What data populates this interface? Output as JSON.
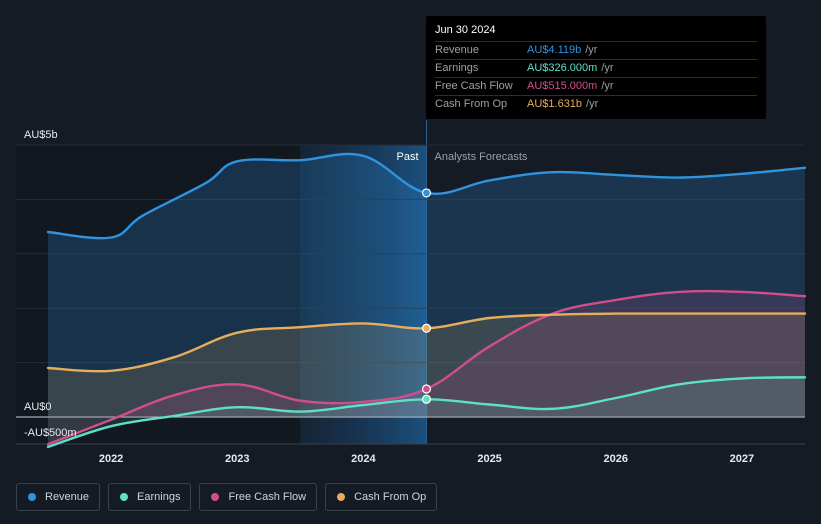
{
  "colors": {
    "revenue": "#2f93e0",
    "earnings": "#5ee0c6",
    "fcf": "#d04e8c",
    "cfo": "#e8ad5c"
  },
  "tooltip": {
    "date": "Jun 30 2024",
    "rows": [
      {
        "label": "Revenue",
        "value": "AU$4.119b",
        "unit": "/yr",
        "color": "#2f93e0"
      },
      {
        "label": "Earnings",
        "value": "AU$326.000m",
        "unit": "/yr",
        "color": "#5ee0c6"
      },
      {
        "label": "Free Cash Flow",
        "value": "AU$515.000m",
        "unit": "/yr",
        "color": "#d04e8c"
      },
      {
        "label": "Cash From Op",
        "value": "AU$1.631b",
        "unit": "/yr",
        "color": "#e8ad5c"
      }
    ]
  },
  "legend": [
    {
      "label": "Revenue",
      "color": "#2f93e0"
    },
    {
      "label": "Earnings",
      "color": "#5ee0c6"
    },
    {
      "label": "Free Cash Flow",
      "color": "#d04e8c"
    },
    {
      "label": "Cash From Op",
      "color": "#e8ad5c"
    }
  ],
  "chart_data": {
    "type": "line",
    "y_unit": "AU$ billions",
    "ylim": [
      -0.5,
      5
    ],
    "xlim": [
      2021.5,
      2027.5
    ],
    "y_labels": [
      {
        "value": 5,
        "label": "AU$5b"
      },
      {
        "value": 0,
        "label": "AU$0"
      },
      {
        "value": -0.5,
        "label": "-AU$500m"
      }
    ],
    "x_ticks": [
      {
        "value": 2022,
        "label": "2022"
      },
      {
        "value": 2023,
        "label": "2023"
      },
      {
        "value": 2024,
        "label": "2024"
      },
      {
        "value": 2025,
        "label": "2025"
      },
      {
        "value": 2026,
        "label": "2026"
      },
      {
        "value": 2027,
        "label": "2027"
      }
    ],
    "divider_x": 2024.5,
    "past_label": "Past",
    "forecast_label": "Analysts Forecasts",
    "highlight_start": 2023.5,
    "series": [
      {
        "name": "Revenue",
        "key": "revenue",
        "points": [
          [
            2021.5,
            3.4
          ],
          [
            2022,
            3.3
          ],
          [
            2022.25,
            3.7
          ],
          [
            2022.75,
            4.3
          ],
          [
            2023,
            4.7
          ],
          [
            2023.5,
            4.72
          ],
          [
            2024,
            4.8
          ],
          [
            2024.5,
            4.119
          ],
          [
            2025,
            4.35
          ],
          [
            2025.5,
            4.5
          ],
          [
            2026,
            4.45
          ],
          [
            2026.5,
            4.4
          ],
          [
            2027,
            4.47
          ],
          [
            2027.5,
            4.58
          ]
        ]
      },
      {
        "name": "Earnings",
        "key": "earnings",
        "points": [
          [
            2021.5,
            -0.55
          ],
          [
            2022,
            -0.17
          ],
          [
            2022.5,
            0.02
          ],
          [
            2023,
            0.18
          ],
          [
            2023.5,
            0.1
          ],
          [
            2024,
            0.22
          ],
          [
            2024.5,
            0.326
          ],
          [
            2025,
            0.23
          ],
          [
            2025.5,
            0.15
          ],
          [
            2026,
            0.35
          ],
          [
            2026.5,
            0.6
          ],
          [
            2027,
            0.71
          ],
          [
            2027.5,
            0.73
          ]
        ]
      },
      {
        "name": "Free Cash Flow",
        "key": "fcf",
        "points": [
          [
            2021.5,
            -0.5
          ],
          [
            2022,
            -0.05
          ],
          [
            2022.5,
            0.4
          ],
          [
            2023,
            0.6
          ],
          [
            2023.5,
            0.3
          ],
          [
            2024,
            0.28
          ],
          [
            2024.5,
            0.515
          ],
          [
            2025,
            1.3
          ],
          [
            2025.5,
            1.9
          ],
          [
            2026,
            2.15
          ],
          [
            2026.5,
            2.3
          ],
          [
            2027,
            2.3
          ],
          [
            2027.5,
            2.22
          ]
        ]
      },
      {
        "name": "Cash From Op",
        "key": "cfo",
        "points": [
          [
            2021.5,
            0.9
          ],
          [
            2022,
            0.85
          ],
          [
            2022.5,
            1.1
          ],
          [
            2023,
            1.55
          ],
          [
            2023.5,
            1.65
          ],
          [
            2024,
            1.72
          ],
          [
            2024.5,
            1.631
          ],
          [
            2025,
            1.82
          ],
          [
            2025.5,
            1.88
          ],
          [
            2026,
            1.9
          ],
          [
            2026.5,
            1.9
          ],
          [
            2027,
            1.9
          ],
          [
            2027.5,
            1.9
          ]
        ]
      }
    ],
    "highlight_points": [
      {
        "key": "revenue",
        "x": 2024.5,
        "y": 4.119
      },
      {
        "key": "cfo",
        "x": 2024.5,
        "y": 1.631
      },
      {
        "key": "fcf",
        "x": 2024.5,
        "y": 0.515
      },
      {
        "key": "earnings",
        "x": 2024.5,
        "y": 0.326
      }
    ]
  }
}
